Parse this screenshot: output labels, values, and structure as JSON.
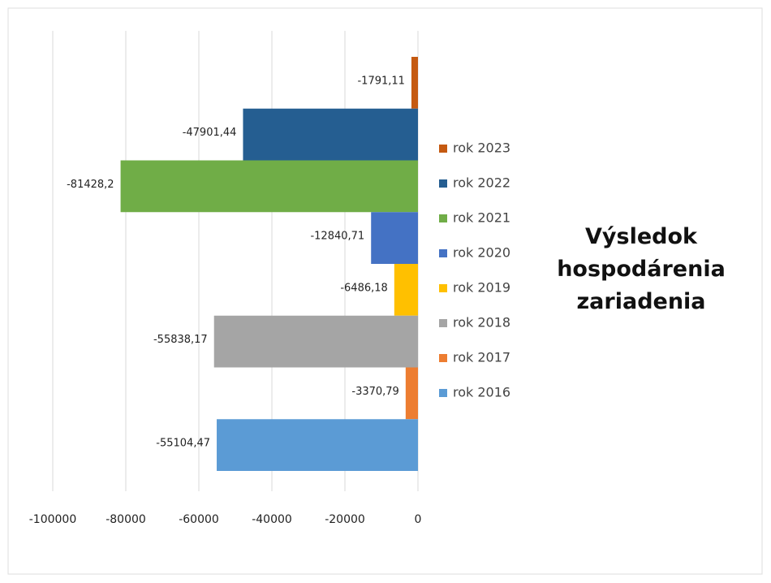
{
  "chart_data": {
    "type": "bar",
    "orientation": "horizontal",
    "title": "Výsledok hospodárenia zariadenia",
    "series": [
      {
        "name": "rok 2023",
        "color": "#c55a11",
        "values": [
          -1791.11
        ],
        "value_labels": [
          "-1791,11"
        ]
      },
      {
        "name": "rok 2022",
        "color": "#255e91",
        "values": [
          -47901.44
        ],
        "value_labels": [
          "-47901,44"
        ]
      },
      {
        "name": "rok 2021",
        "color": "#70ad47",
        "values": [
          -81428.2
        ],
        "value_labels": [
          "-81428,2"
        ]
      },
      {
        "name": "rok 2020",
        "color": "#4472c4",
        "values": [
          -12840.71
        ],
        "value_labels": [
          "-12840,71"
        ]
      },
      {
        "name": "rok 2019",
        "color": "#ffc000",
        "values": [
          -6486.18
        ],
        "value_labels": [
          "-6486,18"
        ]
      },
      {
        "name": "rok 2018",
        "color": "#a5a5a5",
        "values": [
          -55838.17
        ],
        "value_labels": [
          "-55838,17"
        ]
      },
      {
        "name": "rok 2017",
        "color": "#ed7d31",
        "values": [
          -3370.79
        ],
        "value_labels": [
          "-3370,79"
        ]
      },
      {
        "name": "rok 2016",
        "color": "#5b9bd5",
        "values": [
          -55104.47
        ],
        "value_labels": [
          "-55104,47"
        ]
      }
    ],
    "xlim": [
      -100000,
      0
    ],
    "xticks": [
      -100000,
      -80000,
      -60000,
      -40000,
      -20000,
      0
    ],
    "grid": true
  }
}
